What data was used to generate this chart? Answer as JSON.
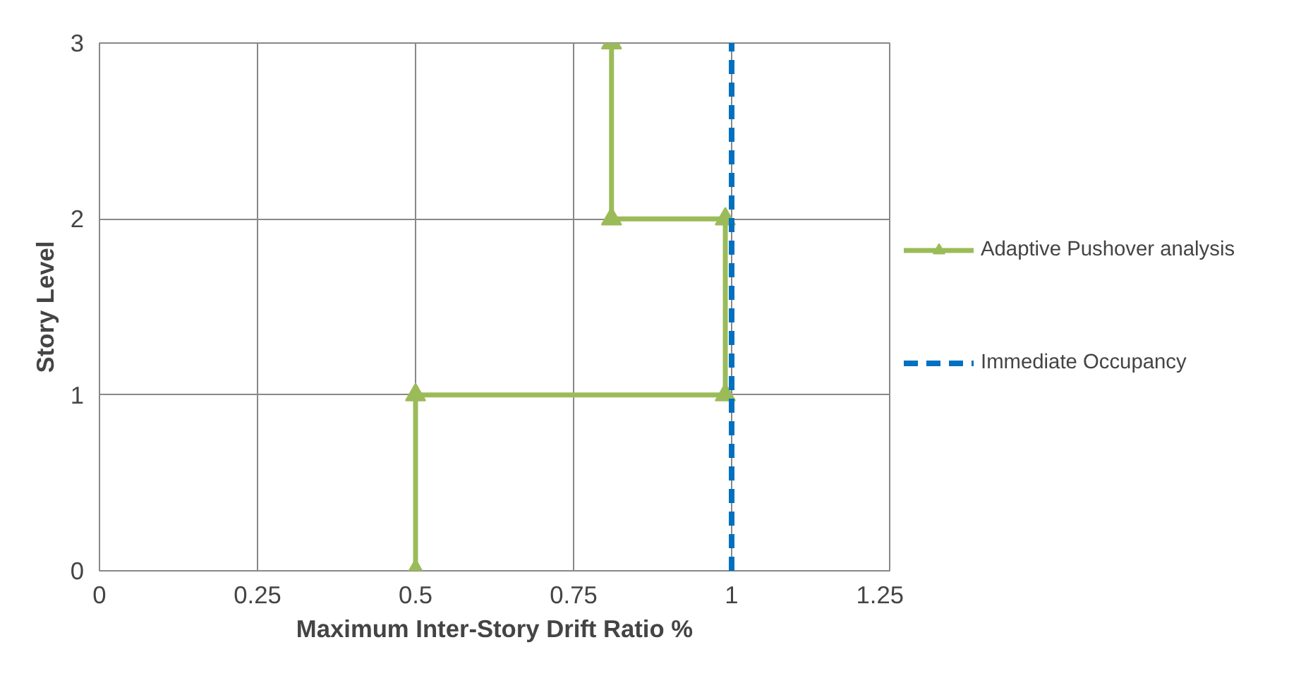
{
  "chart_data": {
    "type": "line",
    "xlabel": "Maximum Inter-Story Drift Ratio %",
    "ylabel": "Story Level",
    "xlim": [
      0,
      1.25
    ],
    "xticks": [
      0,
      0.25,
      0.5,
      0.75,
      1,
      1.25
    ],
    "ylim": [
      0,
      3
    ],
    "yticks": [
      0,
      1,
      2,
      3
    ],
    "grid": true,
    "legend": "right",
    "series": [
      {
        "name": "Adaptive Pushover analysis",
        "color": "#9bbb59",
        "x": [
          0.5,
          0.5,
          0.99,
          0.99,
          0.81,
          0.81
        ],
        "values": [
          0,
          1,
          1,
          2,
          2,
          3
        ],
        "marker": "triangle",
        "line_style": "solid"
      },
      {
        "name": "Immediate Occupancy",
        "color": "#0070c0",
        "x": [
          1,
          1
        ],
        "values": [
          0,
          3
        ],
        "marker": "none",
        "line_style": "dashed"
      }
    ]
  }
}
